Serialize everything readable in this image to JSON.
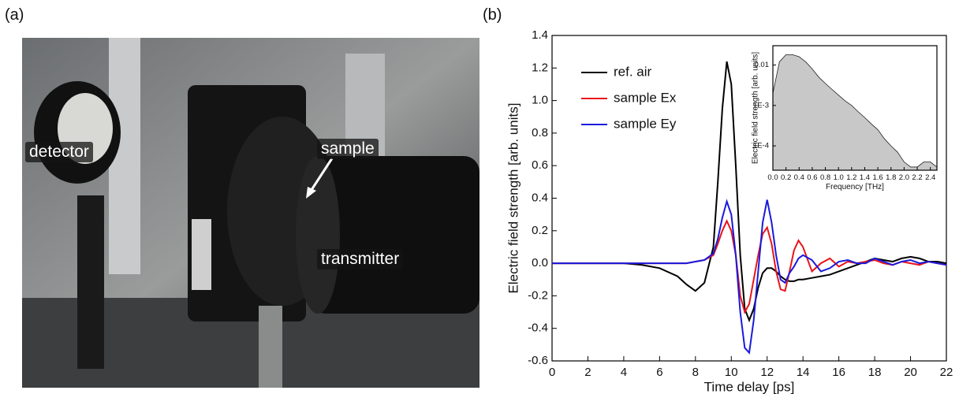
{
  "figure": {
    "panel_a_label": "(a)",
    "panel_b_label": "(b)",
    "photo_labels": [
      "detector",
      "sample",
      "transmitter"
    ]
  },
  "chart_data": [
    {
      "type": "line",
      "xlabel": "Time delay [ps]",
      "ylabel": "Electric field strength [arb. units]",
      "x": [
        0,
        1,
        2,
        3,
        4,
        5,
        6,
        7,
        7.5,
        8,
        8.5,
        9,
        9.25,
        9.5,
        9.75,
        10,
        10.25,
        10.5,
        10.75,
        11,
        11.25,
        11.5,
        11.75,
        12,
        12.25,
        12.5,
        12.75,
        13,
        13.25,
        13.5,
        13.75,
        14,
        14.5,
        15,
        15.5,
        16,
        16.5,
        17,
        17.5,
        18,
        18.5,
        19,
        19.5,
        20,
        20.5,
        21,
        21.5,
        22
      ],
      "series": [
        {
          "name": "ref. air",
          "color": "#000000",
          "values": [
            0,
            0,
            0,
            0,
            0,
            -0.01,
            -0.03,
            -0.08,
            -0.13,
            -0.17,
            -0.12,
            0.1,
            0.5,
            0.95,
            1.24,
            1.1,
            0.6,
            0.05,
            -0.28,
            -0.35,
            -0.28,
            -0.15,
            -0.06,
            -0.03,
            -0.03,
            -0.05,
            -0.08,
            -0.1,
            -0.11,
            -0.11,
            -0.1,
            -0.1,
            -0.09,
            -0.08,
            -0.07,
            -0.05,
            -0.03,
            -0.01,
            0.01,
            0.03,
            0.02,
            0.01,
            0.03,
            0.04,
            0.03,
            0.01,
            0.01,
            0
          ]
        },
        {
          "name": "sample Ex",
          "color": "#e8141b",
          "values": [
            0,
            0,
            0,
            0,
            0,
            0,
            0,
            0,
            0,
            0.01,
            0.02,
            0.05,
            0.12,
            0.2,
            0.26,
            0.2,
            0.05,
            -0.2,
            -0.3,
            -0.25,
            -0.1,
            0.05,
            0.18,
            0.22,
            0.12,
            -0.05,
            -0.16,
            -0.17,
            -0.05,
            0.08,
            0.14,
            0.1,
            -0.05,
            0,
            0.03,
            -0.02,
            0.01,
            0,
            0.01,
            0.02,
            0,
            -0.01,
            0.01,
            0,
            -0.01,
            0.01,
            0,
            -0.01
          ]
        },
        {
          "name": "sample Ey",
          "color": "#1a1adc",
          "values": [
            0,
            0,
            0,
            0,
            0,
            0,
            0,
            0,
            0,
            0.01,
            0.02,
            0.06,
            0.15,
            0.28,
            0.38,
            0.3,
            0.05,
            -0.3,
            -0.52,
            -0.55,
            -0.35,
            -0.05,
            0.25,
            0.39,
            0.25,
            0.05,
            -0.1,
            -0.12,
            -0.06,
            -0.02,
            0.03,
            0.05,
            0.02,
            -0.05,
            -0.03,
            0.01,
            0.02,
            0,
            0,
            0.03,
            0.01,
            -0.01,
            0.01,
            0.02,
            0,
            0.01,
            0,
            -0.01
          ]
        }
      ],
      "xlim": [
        0,
        22
      ],
      "ylim": [
        -0.6,
        1.4
      ],
      "xticks": [
        0,
        2,
        4,
        6,
        8,
        10,
        12,
        14,
        16,
        18,
        20,
        22
      ],
      "yticks": [
        -0.6,
        -0.4,
        -0.2,
        {
          "value": 0,
          "label": "0.0"
        },
        0.2,
        0.4,
        0.6,
        0.8,
        {
          "value": 1,
          "label": "1.0"
        },
        1.2,
        1.4
      ],
      "legend": "upper left"
    },
    {
      "type": "area",
      "xlabel": "Frequency [THz]",
      "ylabel": "Electric field strength [arb. units]",
      "log_y": true,
      "color": "#c8c8c8",
      "x": [
        0,
        0.1,
        0.2,
        0.3,
        0.4,
        0.5,
        0.6,
        0.7,
        0.8,
        0.9,
        1,
        1.1,
        1.2,
        1.3,
        1.4,
        1.5,
        1.6,
        1.7,
        1.8,
        1.9,
        2,
        2.1,
        2.2,
        2.3,
        2.4,
        2.5
      ],
      "values": [
        0.002,
        0.012,
        0.018,
        0.018,
        0.016,
        0.012,
        0.008,
        0.005,
        0.0035,
        0.0025,
        0.0018,
        0.0013,
        0.001,
        0.0007,
        0.0005,
        0.00035,
        0.00025,
        0.00015,
        0.0001,
        7e-05,
        4e-05,
        3e-05,
        3e-05,
        4e-05,
        4e-05,
        3e-05
      ],
      "xlim": [
        0,
        2.5
      ],
      "ylim": [
        2.5e-05,
        0.03
      ],
      "xticks": [
        {
          "value": 0,
          "label": "0.0"
        },
        0.2,
        0.4,
        0.6,
        0.8,
        {
          "value": 1,
          "label": "1.0"
        },
        1.2,
        1.4,
        1.6,
        1.8,
        {
          "value": 2,
          "label": "2.0"
        },
        2.2,
        2.4
      ],
      "yticks": [
        {
          "value": 0.0001,
          "label": "1E-4"
        },
        {
          "value": 0.001,
          "label": "1E-3"
        },
        0.01
      ]
    }
  ]
}
